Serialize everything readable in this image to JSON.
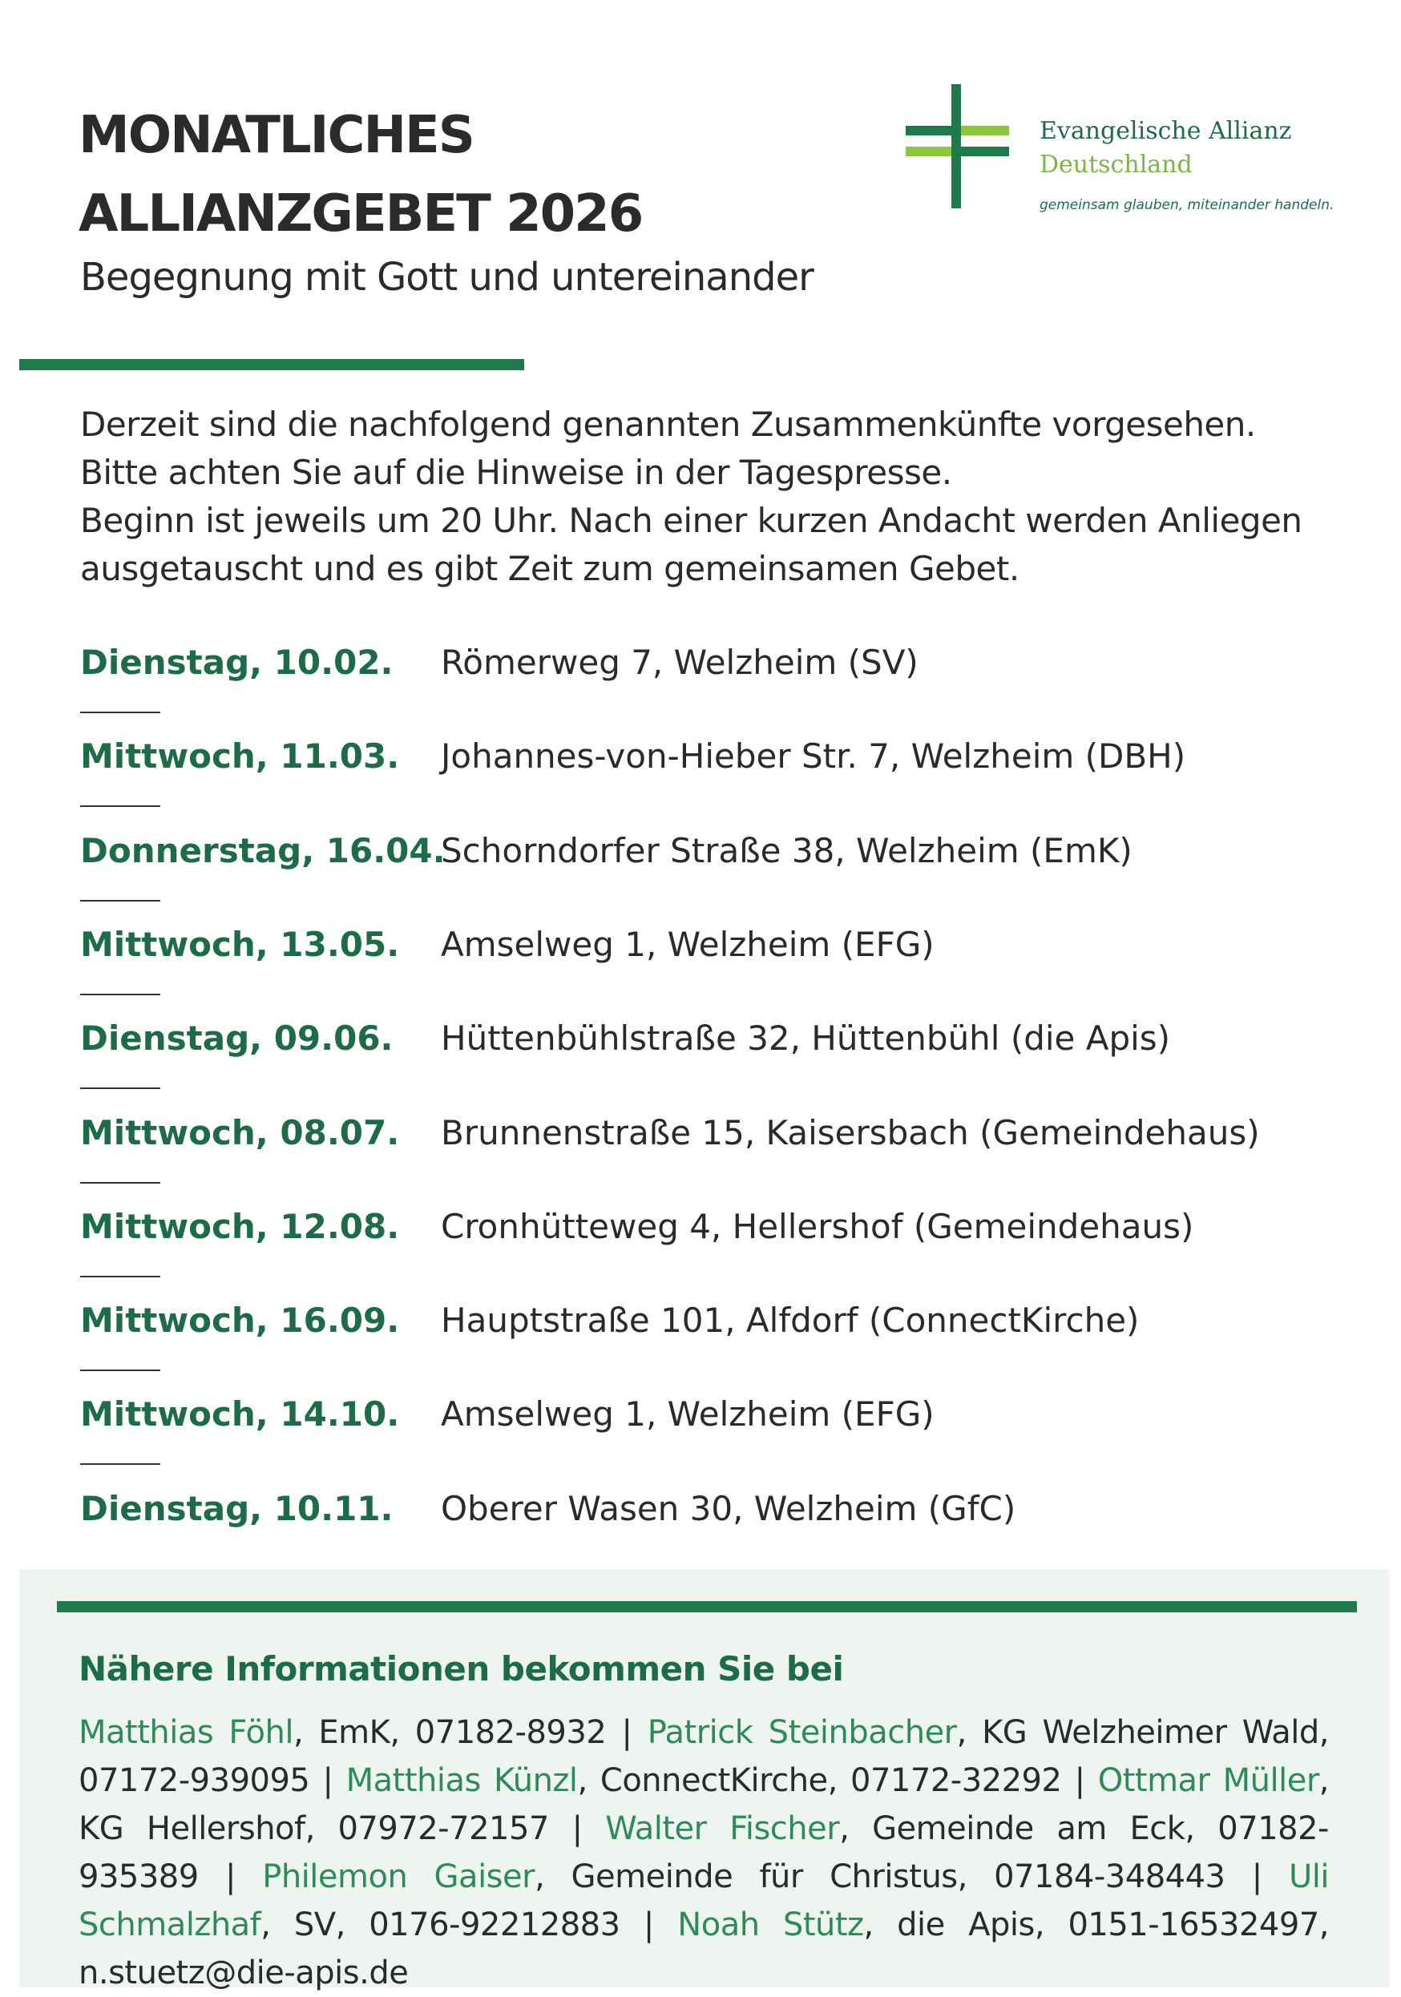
{
  "header": {
    "title_line1": "MONATLICHES",
    "title_line2": "ALLIANZGEBET 2026",
    "subtitle": "Begegnung mit Gott und untereinander"
  },
  "logo": {
    "line1": "Evangelische Allianz",
    "line2": "Deutschland",
    "tagline": "gemeinsam glauben, miteinander handeln."
  },
  "intro": [
    "Derzeit sind die nachfolgend genannten Zusammenkünfte vorgesehen.",
    "Bitte achten Sie auf die Hinweise in der Tagespresse.",
    "Beginn ist jeweils um 20 Uhr. Nach einer kurzen Andacht werden Anliegen",
    "ausgetauscht und es gibt Zeit zum gemeinsamen Gebet."
  ],
  "schedule": [
    {
      "date": "Dienstag, 10.02.",
      "place": "Römerweg 7, Welzheim (SV)"
    },
    {
      "date": "Mittwoch, 11.03.",
      "place": "Johannes-von-Hieber Str. 7, Welzheim (DBH)"
    },
    {
      "date": "Donnerstag, 16.04.",
      "place": "Schorndorfer Straße 38, Welzheim (EmK)"
    },
    {
      "date": "Mittwoch, 13.05.",
      "place": "Amselweg 1, Welzheim (EFG)"
    },
    {
      "date": "Dienstag, 09.06.",
      "place": "Hüttenbühlstraße 32, Hüttenbühl (die Apis)"
    },
    {
      "date": "Mittwoch, 08.07.",
      "place": "Brunnenstraße 15, Kaisersbach (Gemeindehaus)"
    },
    {
      "date": "Mittwoch, 12.08.",
      "place": "Cronhütteweg 4, Hellershof (Gemeindehaus)"
    },
    {
      "date": "Mittwoch, 16.09.",
      "place": "Hauptstraße 101, Alfdorf (ConnectKirche)"
    },
    {
      "date": "Mittwoch, 14.10.",
      "place": "Amselweg 1, Welzheim (EFG)"
    },
    {
      "date": "Dienstag, 10.11.",
      "place": "Oberer Wasen 30, Welzheim (GfC)"
    }
  ],
  "contacts": {
    "heading": "Nähere Informationen bekommen Sie bei",
    "people": [
      {
        "name": "Matthias Föhl",
        "details": ", EmK, 07182-8932"
      },
      {
        "name": "Patrick Steinbacher",
        "details": ", KG Welzheimer Wald, 07172-939095"
      },
      {
        "name": "Matthias Künzl",
        "details": ", ConnectKirche, 07172-32292"
      },
      {
        "name": "Ottmar Müller",
        "details": ", KG Hellershof, 07972-72157"
      },
      {
        "name": "Walter Fischer",
        "details": ", Gemeinde am Eck, 07182-935389"
      },
      {
        "name": "Philemon Gaiser",
        "details": ", Gemeinde für Christus, 07184-348443"
      },
      {
        "name": "Uli Schmalzhaf",
        "details": ", SV, 0176-92212883"
      },
      {
        "name": "Noah Stütz",
        "details": ", die Apis, 0151-16532497, n.stuetz@die-apis.de"
      }
    ]
  }
}
